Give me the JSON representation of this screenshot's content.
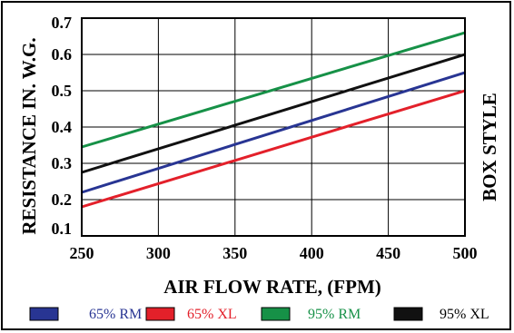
{
  "chart_data": {
    "type": "line",
    "title": "",
    "xlabel": "AIR FLOW RATE, (FPM)",
    "ylabel": "RESISTANCE IN. W.G.",
    "side_label": "BOX STYLE",
    "xlim": [
      250,
      500
    ],
    "ylim": [
      0.1,
      0.7
    ],
    "xticks": [
      "250",
      "300",
      "350",
      "400",
      "450",
      "500"
    ],
    "yticks": [
      "0.1",
      "0.2",
      "0.3",
      "0.4",
      "0.5",
      "0.6",
      "0.7"
    ],
    "grid": true,
    "legend_position": "bottom",
    "series": [
      {
        "name": "65% RM",
        "color": "#283593",
        "x": [
          250,
          500
        ],
        "y": [
          0.22,
          0.55
        ]
      },
      {
        "name": "65% XL",
        "color": "#e3202a",
        "x": [
          250,
          500
        ],
        "y": [
          0.18,
          0.5
        ]
      },
      {
        "name": "95% RM",
        "color": "#169147",
        "x": [
          250,
          500
        ],
        "y": [
          0.345,
          0.66
        ]
      },
      {
        "name": "95% XL",
        "color": "#111111",
        "x": [
          250,
          500
        ],
        "y": [
          0.275,
          0.6
        ]
      }
    ]
  }
}
